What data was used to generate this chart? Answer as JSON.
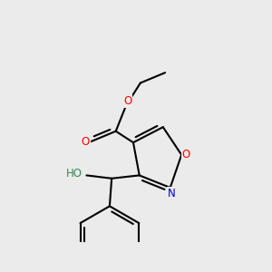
{
  "background_color": "#ebebeb",
  "bond_color": "#000000",
  "bond_width": 1.5,
  "atom_colors": {
    "O": "#ff0000",
    "N": "#0000cd",
    "HO": "#2e8b57",
    "C": "#000000"
  },
  "font_size_atoms": 8.5
}
